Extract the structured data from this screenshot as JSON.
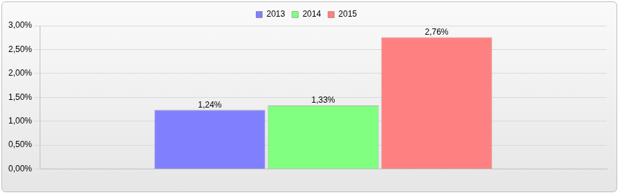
{
  "chart_data": {
    "type": "bar",
    "categories": [
      null
    ],
    "series": [
      {
        "name": "2013",
        "color": "#8080ff",
        "values": [
          1.24
        ],
        "value_labels": [
          "1,24%"
        ]
      },
      {
        "name": "2014",
        "color": "#80ff80",
        "values": [
          1.33
        ],
        "value_labels": [
          "1,33%"
        ]
      },
      {
        "name": "2015",
        "color": "#ff8080",
        "values": [
          2.76
        ],
        "value_labels": [
          "2,76%"
        ]
      }
    ],
    "ylim": [
      0,
      3
    ],
    "yticks": [
      {
        "value": 0,
        "label": "0,00%"
      },
      {
        "value": 0.5,
        "label": "0,50%"
      },
      {
        "value": 1,
        "label": "1,00%"
      },
      {
        "value": 1.5,
        "label": "1,50%"
      },
      {
        "value": 2,
        "label": "2,00%"
      },
      {
        "value": 2.5,
        "label": "2,50%"
      },
      {
        "value": 3,
        "label": "3,00%"
      }
    ],
    "grid": true,
    "legend": "top",
    "data_labels": true
  }
}
